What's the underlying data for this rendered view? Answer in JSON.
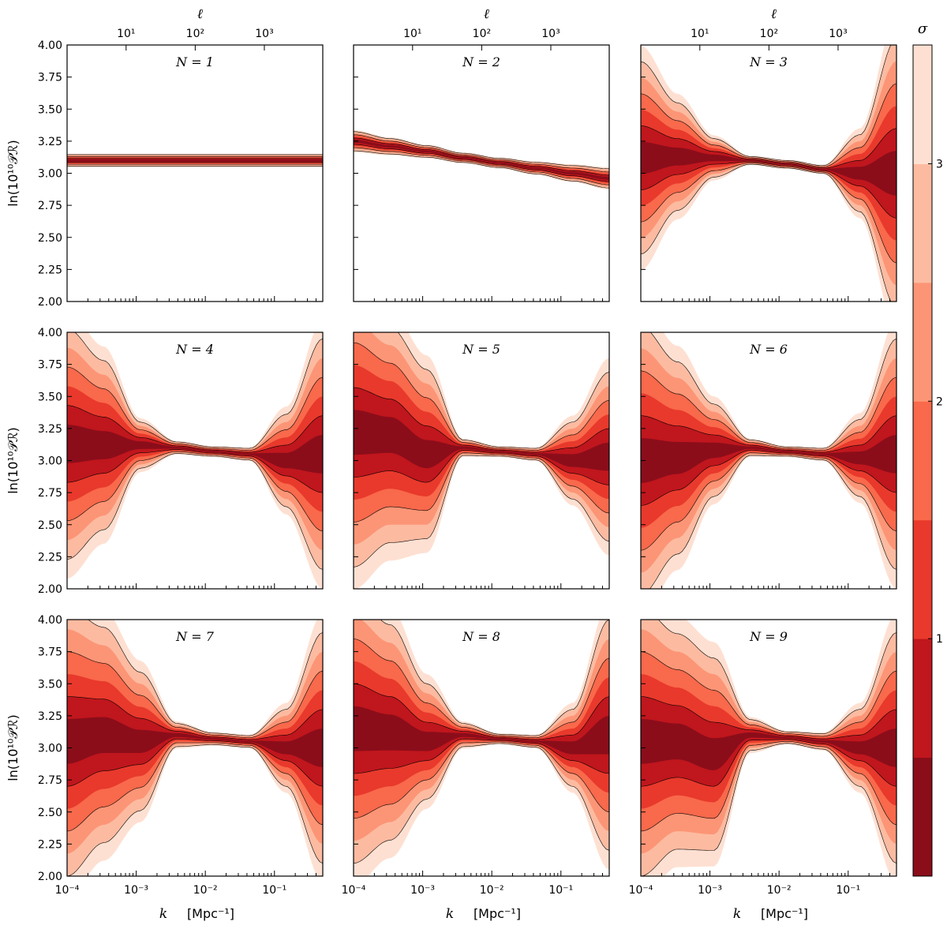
{
  "chart_data": {
    "type": "contour",
    "layout_grid": [
      3,
      3
    ],
    "x_axis": {
      "label": "k",
      "unit_label": "[Mpc⁻¹]",
      "scale": "log",
      "xlim": [
        0.0001,
        0.5
      ],
      "tick_labels": [
        "10⁻⁴",
        "10⁻³",
        "10⁻²",
        "10⁻¹"
      ],
      "tick_values": [
        0.0001,
        0.001,
        0.01,
        0.1
      ]
    },
    "top_axis": {
      "label": "ℓ",
      "tick_labels": [
        "10¹",
        "10²",
        "10³"
      ],
      "tick_values": [
        10,
        100,
        1000
      ]
    },
    "y_axis": {
      "label": "ln(10¹⁰𝒫ℛ)",
      "ylim": [
        2.0,
        4.0
      ],
      "tick_labels": [
        "2.00",
        "2.25",
        "2.50",
        "2.75",
        "3.00",
        "3.25",
        "3.50",
        "3.75",
        "4.00"
      ],
      "tick_values": [
        2.0,
        2.25,
        2.5,
        2.75,
        3.0,
        3.25,
        3.5,
        3.75,
        4.0
      ]
    },
    "colorbar": {
      "label": "σ",
      "tick_labels": [
        "1",
        "2",
        "3"
      ],
      "levels": [
        0.5,
        1.0,
        1.5,
        2.0,
        2.5,
        3.0,
        3.5
      ],
      "colors": [
        "#8b0d1a",
        "#c0161d",
        "#e8392c",
        "#f9694b",
        "#fc9576",
        "#fcbba1",
        "#fee0d2"
      ]
    },
    "panels": [
      {
        "label": "N = 1",
        "spread": [
          0.015,
          0.015,
          0.015,
          0.015,
          0.015,
          0.015,
          0.015,
          0.015
        ],
        "center": [
          3.1,
          3.1,
          3.1,
          3.1,
          3.1,
          3.1,
          3.1,
          3.1
        ]
      },
      {
        "label": "N = 2",
        "spread": [
          0.025,
          0.02,
          0.015,
          0.012,
          0.012,
          0.015,
          0.02,
          0.025
        ],
        "center": [
          3.25,
          3.21,
          3.17,
          3.12,
          3.08,
          3.04,
          3.0,
          2.96
        ]
      },
      {
        "label": "N = 3",
        "spread": [
          0.25,
          0.14,
          0.05,
          0.01,
          0.01,
          0.01,
          0.1,
          0.35
        ],
        "center": [
          3.12,
          3.13,
          3.12,
          3.1,
          3.07,
          3.03,
          3.0,
          3.0
        ]
      },
      {
        "label": "N = 4",
        "spread": [
          0.3,
          0.22,
          0.06,
          0.015,
          0.012,
          0.015,
          0.12,
          0.3
        ],
        "center": [
          3.13,
          3.12,
          3.12,
          3.1,
          3.07,
          3.05,
          3.0,
          3.05
        ]
      },
      {
        "label": "N = 5",
        "spread": [
          0.35,
          0.28,
          0.22,
          0.02,
          0.012,
          0.015,
          0.1,
          0.22
        ],
        "center": [
          3.22,
          3.2,
          3.05,
          3.1,
          3.07,
          3.05,
          3.0,
          3.03
        ]
      },
      {
        "label": "N = 6",
        "spread": [
          0.35,
          0.25,
          0.12,
          0.02,
          0.012,
          0.015,
          0.1,
          0.3
        ],
        "center": [
          3.0,
          3.02,
          3.08,
          3.1,
          3.07,
          3.05,
          3.02,
          3.05
        ]
      },
      {
        "label": "N = 7",
        "spread": [
          0.35,
          0.28,
          0.18,
          0.03,
          0.015,
          0.015,
          0.1,
          0.3
        ],
        "center": [
          3.05,
          3.1,
          3.05,
          3.1,
          3.07,
          3.05,
          3.0,
          3.0
        ]
      },
      {
        "label": "N = 8",
        "spread": [
          0.35,
          0.28,
          0.15,
          0.03,
          0.012,
          0.015,
          0.1,
          0.3
        ],
        "center": [
          3.15,
          3.12,
          3.05,
          3.1,
          3.07,
          3.05,
          3.0,
          3.1
        ]
      },
      {
        "label": "N = 9",
        "spread": [
          0.35,
          0.28,
          0.25,
          0.04,
          0.015,
          0.02,
          0.1,
          0.3
        ],
        "center": [
          3.05,
          3.05,
          2.95,
          3.1,
          3.08,
          3.05,
          3.0,
          3.0
        ]
      }
    ]
  }
}
